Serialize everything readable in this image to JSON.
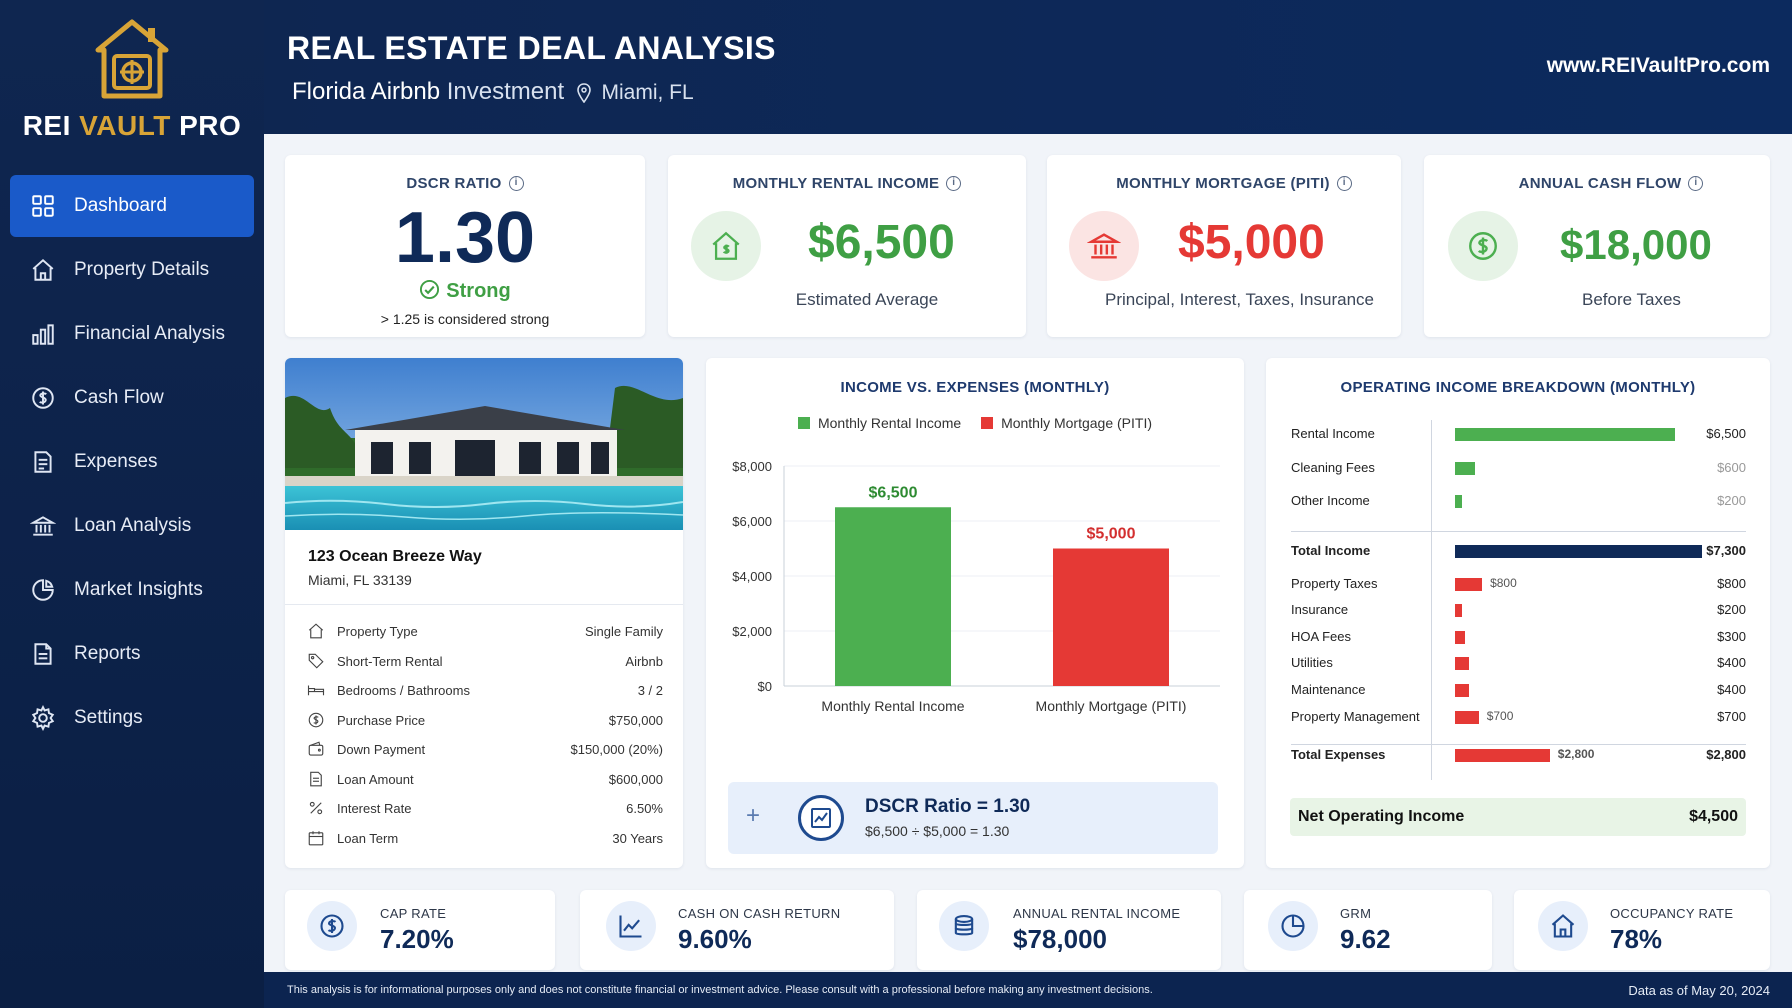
{
  "brand": {
    "name_part1": "REI ",
    "name_part2": "VAULT",
    "name_part3": " PRO",
    "gold": "#d8a437"
  },
  "sidebar": {
    "items": [
      {
        "label": "Dashboard",
        "icon": "grid-icon",
        "active": true
      },
      {
        "label": "Property Details",
        "icon": "home-icon"
      },
      {
        "label": "Financial Analysis",
        "icon": "bar-chart-icon"
      },
      {
        "label": "Cash Flow",
        "icon": "dollar-circle-icon"
      },
      {
        "label": "Expenses",
        "icon": "document-icon"
      },
      {
        "label": "Loan Analysis",
        "icon": "bank-icon"
      },
      {
        "label": "Market Insights",
        "icon": "pie-chart-icon"
      },
      {
        "label": "Reports",
        "icon": "report-icon"
      },
      {
        "label": "Settings",
        "icon": "gear-icon"
      }
    ]
  },
  "header": {
    "title": "REAL ESTATE DEAL ANALYSIS",
    "subtitle": "Florida Airbnb",
    "subtitle_light": "Investment",
    "location": "Miami, FL",
    "website": "www.REIVaultPro.com"
  },
  "kpis": {
    "dscr": {
      "label": "DSCR RATIO",
      "value": "1.30",
      "status": "Strong",
      "note": "> 1.25 is considered strong"
    },
    "rental": {
      "label": "MONTHLY RENTAL INCOME",
      "value": "$6,500",
      "sub": "Estimated Average",
      "icon": "house-dollar-icon"
    },
    "mortgage": {
      "label": "MONTHLY MORTGAGE (PITI)",
      "value": "$5,000",
      "sub": "Principal, Interest, Taxes, Insurance",
      "icon": "bank-icon"
    },
    "cashflow": {
      "label": "ANNUAL CASH FLOW",
      "value": "$18,000",
      "sub": "Before Taxes",
      "icon": "dollar-circle-icon"
    }
  },
  "colors": {
    "green": "#4caf50",
    "red": "#e53935",
    "navy": "#0f2a58",
    "blue_active": "#1a5ac9"
  },
  "property": {
    "address": "123 Ocean Breeze Way",
    "city": "Miami, FL 33139",
    "rows": [
      {
        "label": "Property Type",
        "value": "Single Family",
        "icon": "home-icon"
      },
      {
        "label": "Short-Term Rental",
        "value": "Airbnb",
        "icon": "tag-icon"
      },
      {
        "label": "Bedrooms / Bathrooms",
        "value": "3 / 2",
        "icon": "bed-icon"
      },
      {
        "label": "Purchase Price",
        "value": "$750,000",
        "icon": "dollar-circle-icon"
      },
      {
        "label": "Down Payment",
        "value": "$150,000 (20%)",
        "icon": "wallet-icon"
      },
      {
        "label": "Loan Amount",
        "value": "$600,000",
        "icon": "document-icon"
      },
      {
        "label": "Interest Rate",
        "value": "6.50%",
        "icon": "percent-icon"
      },
      {
        "label": "Loan Term",
        "value": "30 Years",
        "icon": "calendar-icon"
      }
    ]
  },
  "chart_data": [
    {
      "type": "bar",
      "title": "INCOME VS. EXPENSES (MONTHLY)",
      "categories": [
        "Monthly Rental Income",
        "Monthly Mortgage (PITI)"
      ],
      "values": [
        6500,
        5000
      ],
      "data_labels": [
        "$6,500",
        "$5,000"
      ],
      "colors": [
        "#4caf50",
        "#e53935"
      ],
      "legend": [
        "Monthly Rental Income",
        "Monthly Mortgage (PITI)"
      ],
      "yticks": [
        "$0",
        "$2,000",
        "$4,000",
        "$6,000",
        "$8,000"
      ],
      "ylim": [
        0,
        8000
      ],
      "legend_position": "top"
    },
    {
      "type": "bar",
      "orientation": "horizontal",
      "title": "OPERATING INCOME BREAKDOWN (MONTHLY)",
      "income": [
        {
          "label": "Rental Income",
          "value": 6500,
          "display": "$6,500"
        },
        {
          "label": "Cleaning Fees",
          "value": 600,
          "display": "$600"
        },
        {
          "label": "Other Income",
          "value": 200,
          "display": "$200"
        }
      ],
      "total_income": {
        "label": "Total Income",
        "value": 7300,
        "display": "$7,300"
      },
      "expenses": [
        {
          "label": "Property Taxes",
          "value": 800,
          "display": "$800",
          "inline": "$800"
        },
        {
          "label": "Insurance",
          "value": 200,
          "display": "$200"
        },
        {
          "label": "HOA Fees",
          "value": 300,
          "display": "$300"
        },
        {
          "label": "Utilities",
          "value": 400,
          "display": "$400"
        },
        {
          "label": "Maintenance",
          "value": 400,
          "display": "$400"
        },
        {
          "label": "Property Management",
          "value": 700,
          "display": "$700",
          "inline": "$700"
        }
      ],
      "total_expenses": {
        "label": "Total Expenses",
        "value": 2800,
        "display": "$2,800",
        "inline": "$2,800"
      },
      "noi": {
        "label": "Net Operating Income",
        "display": "$4,500"
      }
    }
  ],
  "dscr_box": {
    "title": "DSCR Ratio = 1.30",
    "formula": "$6,500 ÷ $5,000 = 1.30",
    "plus": "+"
  },
  "bottom_kpis": [
    {
      "label": "CAP RATE",
      "value": "7.20%",
      "icon": "dollar-circle-icon"
    },
    {
      "label": "CASH ON CASH RETURN",
      "value": "9.60%",
      "icon": "trend-chart-icon"
    },
    {
      "label": "ANNUAL RENTAL INCOME",
      "value": "$78,000",
      "icon": "coins-icon"
    },
    {
      "label": "GRM",
      "value": "9.62",
      "icon": "pie-chart-icon"
    },
    {
      "label": "OCCUPANCY RATE",
      "value": "78%",
      "icon": "home-icon"
    }
  ],
  "footer": {
    "disclaimer": "This analysis is for informational purposes only and does not constitute financial or investment advice. Please consult with a professional before making any investment decisions.",
    "as_of": "Data as of May 20, 2024"
  }
}
